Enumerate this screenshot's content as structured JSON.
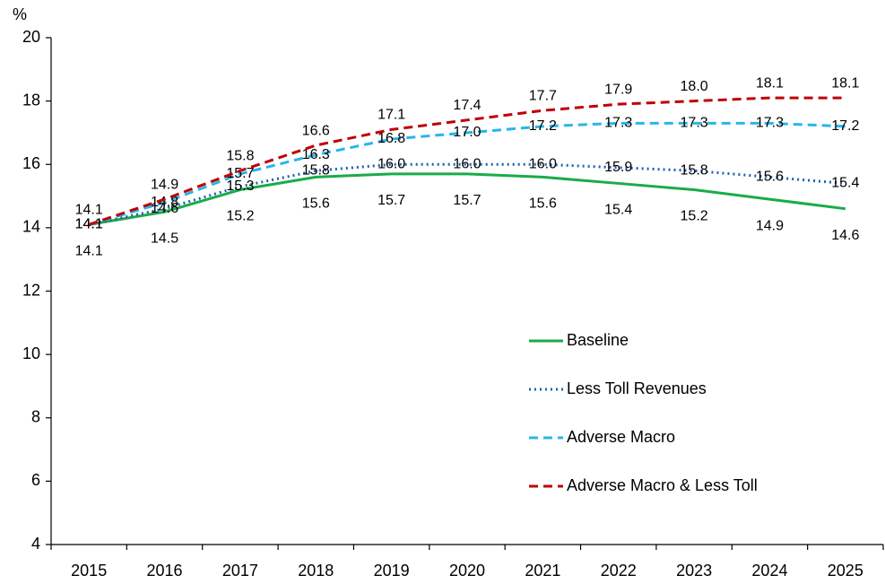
{
  "chart_data": {
    "type": "line",
    "y_label": "%",
    "categories": [
      "2015",
      "2016",
      "2017",
      "2018",
      "2019",
      "2020",
      "2021",
      "2022",
      "2023",
      "2024",
      "2025"
    ],
    "ylim": [
      4,
      20
    ],
    "yticks": [
      4,
      6,
      8,
      10,
      12,
      14,
      16,
      18,
      20
    ],
    "series": [
      {
        "name": "Baseline",
        "color": "#1aab4a",
        "dash": "solid",
        "values": [
          14.1,
          14.5,
          15.2,
          15.6,
          15.7,
          15.7,
          15.6,
          15.4,
          15.2,
          14.9,
          14.6
        ]
      },
      {
        "name": "Less Toll Revenues",
        "color": "#1f5fb5",
        "dash": "dotted",
        "values": [
          14.1,
          14.6,
          15.3,
          15.8,
          16.0,
          16.0,
          16.0,
          15.9,
          15.8,
          15.6,
          15.4
        ],
        "value_labels": [
          "14.1",
          "14.6",
          "15.3",
          "15.8",
          "16.0",
          "16.0",
          "16.0",
          "15.9",
          "15.8",
          "15.6",
          "15.4"
        ]
      },
      {
        "name": "Adverse Macro",
        "color": "#29b6e8",
        "dash": "dashed",
        "values": [
          14.1,
          14.8,
          15.7,
          16.3,
          16.8,
          17.0,
          17.2,
          17.3,
          17.3,
          17.3,
          17.2
        ],
        "value_labels": [
          "14.1",
          "14.8",
          "15.7",
          "16.3",
          "16.8",
          "17.0",
          "17.2",
          "17.3",
          "17.3",
          "17.3",
          "17.2"
        ]
      },
      {
        "name": "Adverse Macro & Less Toll",
        "color": "#c00000",
        "dash": "dashed",
        "values": [
          14.1,
          14.9,
          15.8,
          16.6,
          17.1,
          17.4,
          17.7,
          17.9,
          18.0,
          18.1,
          18.1
        ],
        "value_labels": [
          "14.1",
          "14.9",
          "15.8",
          "16.6",
          "17.1",
          "17.4",
          "17.7",
          "17.9",
          "18.0",
          "18.1",
          "18.1"
        ]
      }
    ]
  }
}
